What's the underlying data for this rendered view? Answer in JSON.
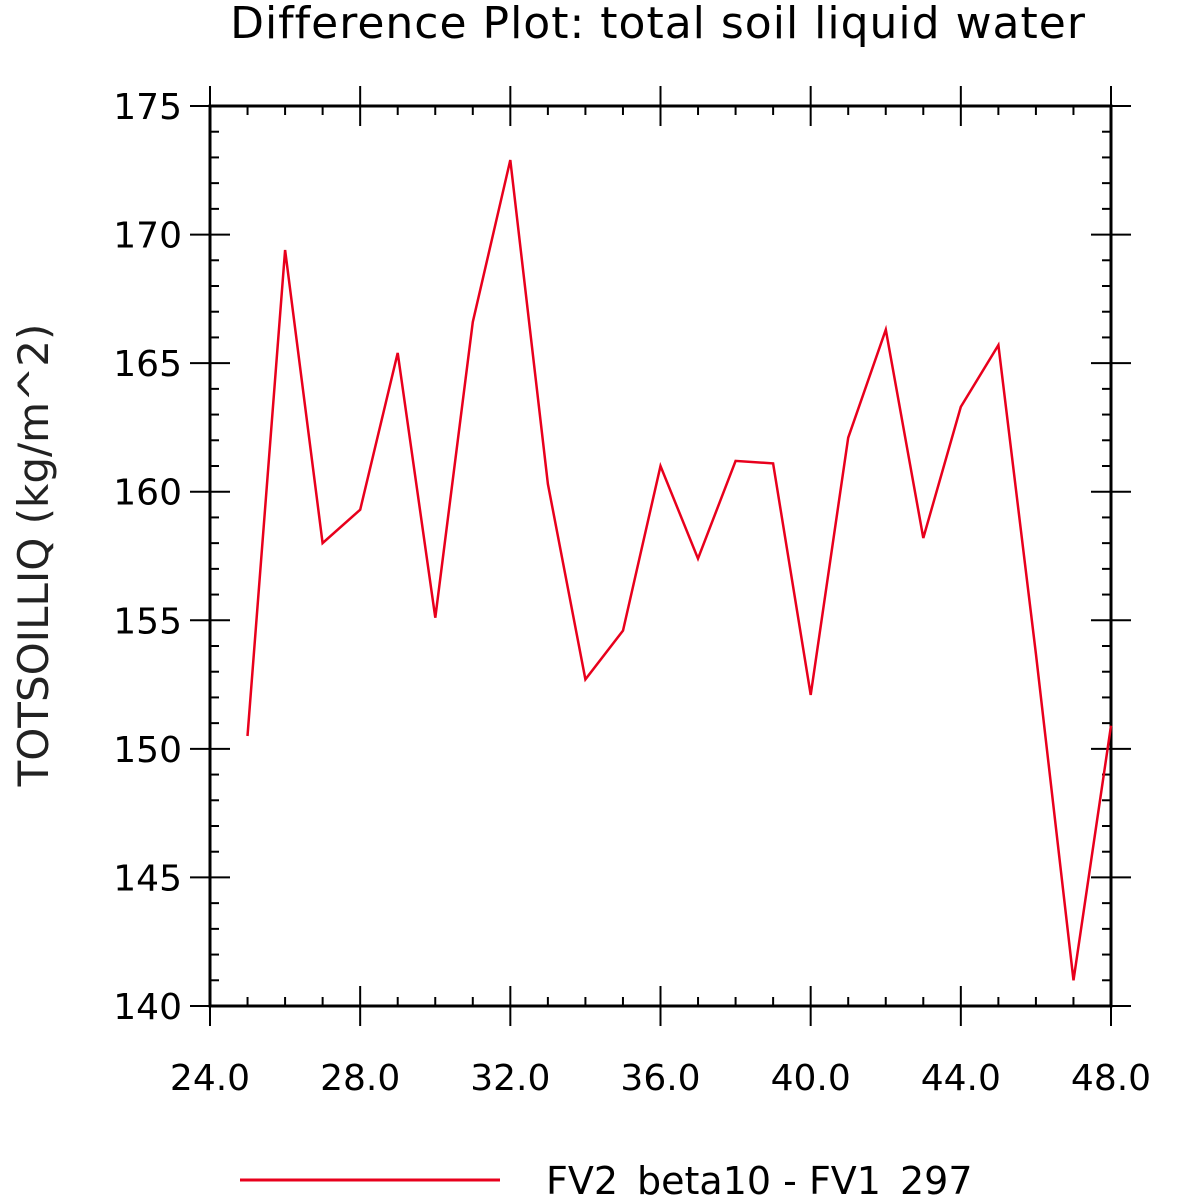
{
  "chart_data": {
    "type": "line",
    "title": "Difference Plot: total soil liquid water",
    "ylabel": "TOTSOILLIQ   (kg/m^2)",
    "xlabel": "",
    "xlim": [
      24.0,
      48.0
    ],
    "ylim": [
      140,
      175
    ],
    "x_ticks": [
      "24.0",
      "28.0",
      "32.0",
      "36.0",
      "40.0",
      "44.0",
      "48.0"
    ],
    "y_ticks": [
      "140",
      "145",
      "150",
      "155",
      "160",
      "165",
      "170",
      "175"
    ],
    "grid": false,
    "legend_position": "bottom",
    "series": [
      {
        "name": "FV2_beta10 - FV1_297",
        "color": "#e8001c",
        "x": [
          25,
          26,
          27,
          28,
          29,
          30,
          31,
          32,
          33,
          34,
          35,
          36,
          37,
          38,
          39,
          40,
          41,
          42,
          43,
          44,
          45,
          46,
          47,
          48
        ],
        "y": [
          150.5,
          169.4,
          158.0,
          159.3,
          165.4,
          155.1,
          166.6,
          172.9,
          160.3,
          152.7,
          154.6,
          161.0,
          157.4,
          161.2,
          161.1,
          152.1,
          162.1,
          166.3,
          158.2,
          163.3,
          165.7,
          153.7,
          141.0,
          150.9
        ]
      }
    ]
  }
}
